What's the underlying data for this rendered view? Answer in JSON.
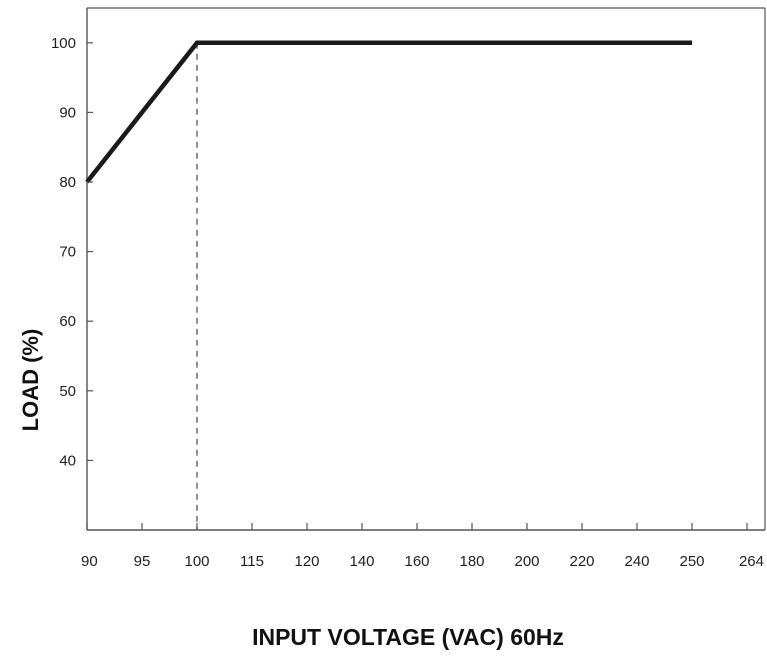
{
  "chart_data": {
    "type": "line",
    "title": "",
    "xlabel": "INPUT VOLTAGE (VAC) 60Hz",
    "ylabel": "LOAD (%)",
    "x_ticks": [
      "90",
      "95",
      "100",
      "115",
      "120",
      "140",
      "160",
      "180",
      "200",
      "220",
      "240",
      "250",
      "264"
    ],
    "y_ticks": [
      40,
      50,
      60,
      70,
      80,
      90,
      100
    ],
    "series": [
      {
        "points": [
          {
            "x": "90",
            "y": 80
          },
          {
            "x": "100",
            "y": 100
          },
          {
            "x": "250",
            "y": 100
          }
        ]
      }
    ],
    "reference_lines": [
      {
        "x": "100",
        "style": "dashed"
      }
    ],
    "ylim": [
      30,
      105
    ],
    "grid": false,
    "line_color": "#1a1a1a"
  }
}
